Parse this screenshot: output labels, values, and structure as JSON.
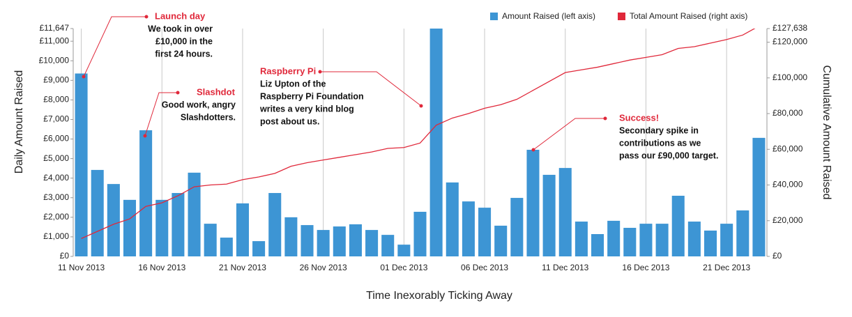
{
  "chart_data": {
    "type": "bar-line",
    "x_label": "Time Inexorably Ticking Away",
    "y_label": "Daily Amount Raised",
    "y2_label": "Cumulative Amount Raised",
    "categories": [
      "11 Nov 2013",
      null,
      null,
      null,
      null,
      "16 Nov 2013",
      null,
      null,
      null,
      null,
      "21 Nov 2013",
      null,
      null,
      null,
      null,
      "26 Nov 2013",
      null,
      null,
      null,
      null,
      "01 Dec 2013",
      null,
      null,
      null,
      null,
      "06 Dec 2013",
      null,
      null,
      null,
      null,
      "11 Dec 2013",
      null,
      null,
      null,
      null,
      "16 Dec 2013",
      null,
      null,
      null,
      null,
      "21 Dec 2013",
      null,
      null
    ],
    "series": [
      {
        "name": "Amount Raised (left axis)",
        "color": "#3d95d4",
        "type": "bar",
        "values": [
          9350,
          4420,
          3700,
          2890,
          6450,
          2890,
          3240,
          4280,
          1670,
          960,
          2710,
          780,
          3240,
          2000,
          1600,
          1350,
          1530,
          1640,
          1350,
          1100,
          600,
          2280,
          11647,
          3780,
          2810,
          2490,
          1570,
          2990,
          5450,
          4170,
          4520,
          1780,
          1140,
          1820,
          1460,
          1670,
          1670,
          3100,
          1780,
          1320,
          1670,
          2350,
          6060
        ]
      },
      {
        "name": "Total Amount Raised (right axis)",
        "color": "#e0283a",
        "type": "line",
        "axis": "y2",
        "values": [
          10000,
          14000,
          18000,
          21000,
          28000,
          30000,
          34000,
          39000,
          40000,
          40500,
          43000,
          44500,
          46500,
          50500,
          52500,
          54000,
          55500,
          57000,
          58500,
          60500,
          61000,
          63500,
          73500,
          77500,
          80000,
          83000,
          85000,
          88000,
          93000,
          98000,
          103000,
          104500,
          106000,
          108000,
          110000,
          111500,
          113000,
          116500,
          117500,
          119500,
          121500,
          124000,
          129000
        ]
      }
    ],
    "ylim": [
      0,
      11647
    ],
    "yticks": [
      {
        "value": 0,
        "label": "£0"
      },
      {
        "value": 1000,
        "label": "£1,000"
      },
      {
        "value": 2000,
        "label": "£2,000"
      },
      {
        "value": 3000,
        "label": "£3,000"
      },
      {
        "value": 4000,
        "label": "£4,000"
      },
      {
        "value": 5000,
        "label": "£5,000"
      },
      {
        "value": 6000,
        "label": "£6,000"
      },
      {
        "value": 7000,
        "label": "£7,000"
      },
      {
        "value": 8000,
        "label": "£8,000"
      },
      {
        "value": 9000,
        "label": "£9,000"
      },
      {
        "value": 10000,
        "label": "£10,000"
      },
      {
        "value": 11000,
        "label": "£11,000"
      },
      {
        "value": 11647,
        "label": "£11,647"
      }
    ],
    "y2lim": [
      0,
      127638
    ],
    "y2ticks": [
      {
        "value": 0,
        "label": "£0"
      },
      {
        "value": 20000,
        "label": "£20,000"
      },
      {
        "value": 40000,
        "label": "£40,000"
      },
      {
        "value": 60000,
        "label": "£60,000"
      },
      {
        "value": 80000,
        "label": "£80,000"
      },
      {
        "value": 100000,
        "label": "£100,000"
      },
      {
        "value": 120000,
        "label": "£120,000"
      },
      {
        "value": 127638,
        "label": "£127,638"
      }
    ],
    "grid": true,
    "legend": "top-right",
    "annotations": [
      {
        "title": "Launch day",
        "lines": [
          "We took in over",
          "£10,000 in the",
          "first 24 hours."
        ]
      },
      {
        "title": "Slashdot",
        "lines": [
          "Good work, angry",
          "Slashdotters."
        ]
      },
      {
        "title": "Raspberry Pi",
        "lines": [
          "Liz Upton of the",
          "Raspberry Pi Foundation",
          "writes a very kind blog",
          "post about us."
        ]
      },
      {
        "title": "Success!",
        "lines": [
          "Secondary spike in",
          "contributions as we",
          "pass our £90,000 target."
        ]
      }
    ]
  }
}
